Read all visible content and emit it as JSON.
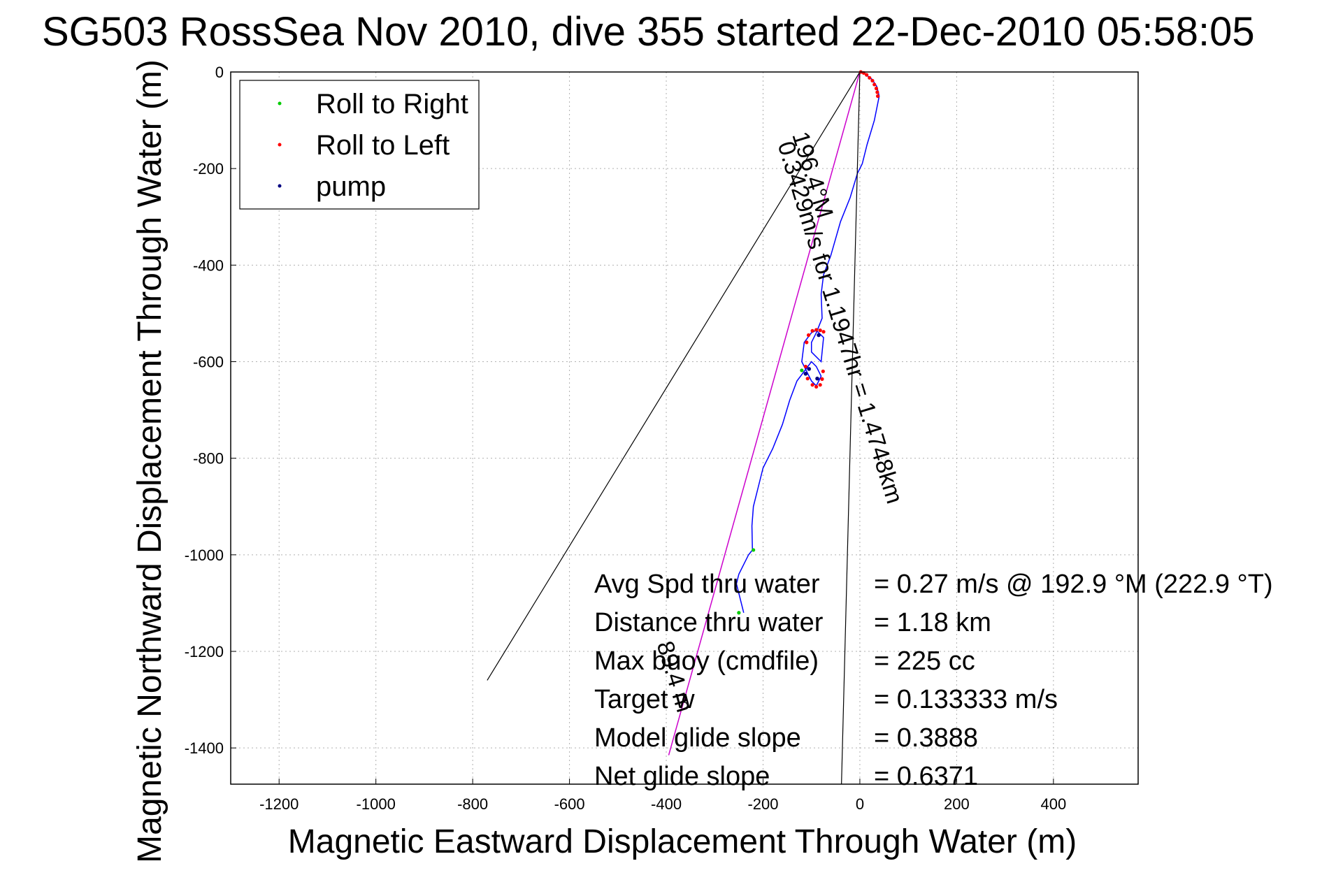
{
  "chart_data": {
    "type": "line",
    "title": "SG503 RossSea Nov 2010, dive 355 started 22-Dec-2010 05:58:05",
    "xlabel": "Magnetic Eastward Displacement Through Water (m)",
    "ylabel": "Magnetic Northward Displacement Through Water (m)",
    "xlim": [
      -1300,
      575
    ],
    "ylim": [
      -1475,
      0
    ],
    "xticks": [
      -1200,
      -1000,
      -800,
      -600,
      -400,
      -200,
      0,
      200,
      400
    ],
    "yticks": [
      0,
      -200,
      -400,
      -600,
      -800,
      -1000,
      -1200,
      -1400
    ],
    "grid": true,
    "legend_position": "top-left",
    "legend": [
      {
        "label": "Roll to Right",
        "color": "#00cc00"
      },
      {
        "label": "Roll to Left",
        "color": "#ff0000"
      },
      {
        "label": "pump",
        "color": "#000080"
      }
    ],
    "series": [
      {
        "color": "#0000ff",
        "x": [
          0,
          12,
          25,
          35,
          40,
          30,
          15,
          5,
          -5,
          -20,
          -40,
          -60,
          -75,
          -80,
          -78,
          -90,
          -100,
          -100,
          -80,
          -75,
          -90,
          -100,
          -115,
          -120,
          -110,
          -100,
          -90,
          -80,
          -90,
          -100,
          -130,
          -145,
          -160,
          -180,
          -200,
          -210,
          -220,
          -223,
          -222,
          -230,
          -250,
          -255,
          -250,
          -245,
          -240
        ],
        "y": [
          0,
          -5,
          -15,
          -30,
          -50,
          -100,
          -150,
          -190,
          -210,
          -260,
          -310,
          -380,
          -420,
          -460,
          -510,
          -540,
          -560,
          -580,
          -600,
          -550,
          -535,
          -540,
          -560,
          -600,
          -620,
          -640,
          -650,
          -630,
          -610,
          -600,
          -640,
          -680,
          -730,
          -780,
          -820,
          -860,
          -900,
          -940,
          -990,
          -1000,
          -1040,
          -1060,
          -1080,
          -1100,
          -1120
        ]
      },
      {
        "color": "#cc00cc",
        "x": [
          0,
          -395
        ],
        "y": [
          0,
          -1415
        ]
      },
      {
        "color": "#000000",
        "x": [
          0,
          -770
        ],
        "y": [
          0,
          -1260
        ]
      },
      {
        "color": "#000000",
        "x": [
          0,
          -38
        ],
        "y": [
          0,
          -1475
        ]
      }
    ],
    "roll_to_left_points": {
      "x": [
        2,
        8,
        14,
        20,
        26,
        30,
        34,
        36,
        37,
        -75,
        -82,
        -90,
        -98,
        -106,
        -110,
        -112,
        -108,
        -98,
        -90,
        -82,
        -78,
        -76
      ],
      "y": [
        0,
        -2,
        -6,
        -12,
        -18,
        -26,
        -34,
        -42,
        -50,
        -538,
        -535,
        -534,
        -536,
        -545,
        -560,
        -610,
        -635,
        -648,
        -652,
        -648,
        -636,
        -620
      ]
    },
    "roll_to_right_points": {
      "x": [
        -120,
        -220,
        -250
      ],
      "y": [
        -618,
        -990,
        -1120
      ]
    },
    "pump_points": {
      "x": [
        -112,
        -105,
        -85,
        -88
      ],
      "y": [
        -625,
        -615,
        -545,
        -635
      ]
    },
    "annotations": [
      {
        "text": "0.3429m/s for 1.1947hr = 1.4748km",
        "x": -170,
        "y": -150,
        "angle": 73
      },
      {
        "text": "196.4°M",
        "x": -140,
        "y": -130,
        "angle": 73
      },
      {
        "text": "89.4 m",
        "x": -420,
        "y": -1185,
        "angle": 73
      }
    ],
    "stats": [
      {
        "label": "Avg Spd thru water",
        "value": "=  0.27 m/s @ 192.9 °M (222.9 °T)"
      },
      {
        "label": "Distance thru water",
        "value": "=  1.18 km"
      },
      {
        "label": "Max buoy (cmdfile)",
        "value": "= 225 cc"
      },
      {
        "label": "Target w",
        "value": "= 0.133333 m/s"
      },
      {
        "label": "Model glide slope",
        "value": "= 0.3888"
      },
      {
        "label": "Net glide slope",
        "value": "= 0.6371"
      }
    ]
  }
}
